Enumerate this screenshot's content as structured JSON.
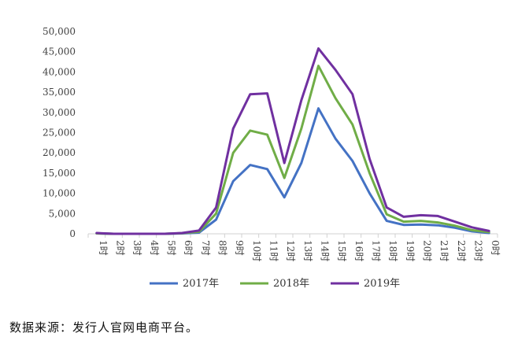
{
  "chart_data": {
    "type": "line",
    "categories": [
      "1时",
      "2时",
      "3时",
      "4时",
      "5时",
      "6时",
      "7时",
      "8时",
      "9时",
      "10时",
      "11时",
      "12时",
      "13时",
      "14时",
      "15时",
      "16时",
      "17时",
      "18时",
      "19时",
      "20时",
      "21时",
      "22时",
      "23时",
      "0时"
    ],
    "series": [
      {
        "name": "2017年",
        "color": "#4472C4",
        "values": [
          100,
          0,
          0,
          0,
          0,
          100,
          300,
          3500,
          13000,
          17000,
          16000,
          9000,
          17500,
          31000,
          23500,
          18000,
          10000,
          3200,
          2200,
          2300,
          2100,
          1500,
          600,
          200
        ]
      },
      {
        "name": "2018年",
        "color": "#70AD47",
        "values": [
          100,
          0,
          0,
          0,
          0,
          150,
          500,
          5000,
          20000,
          25500,
          24500,
          13800,
          26000,
          41500,
          33500,
          27000,
          15000,
          4800,
          3000,
          3200,
          2800,
          2000,
          900,
          400
        ]
      },
      {
        "name": "2019年",
        "color": "#7030A0",
        "values": [
          200,
          0,
          0,
          0,
          0,
          200,
          800,
          6500,
          26000,
          34500,
          34700,
          17500,
          33000,
          45800,
          40500,
          34500,
          18500,
          6500,
          4200,
          4600,
          4400,
          3000,
          1600,
          700
        ]
      }
    ],
    "yticks": [
      "0",
      "5,000",
      "10,000",
      "15,000",
      "20,000",
      "25,000",
      "30,000",
      "35,000",
      "40,000",
      "45,000",
      "50,000"
    ],
    "ylim": [
      0,
      50000
    ],
    "grid": false,
    "legend": "bottom"
  },
  "source_note": "数据来源：发行人官网电商平台。"
}
